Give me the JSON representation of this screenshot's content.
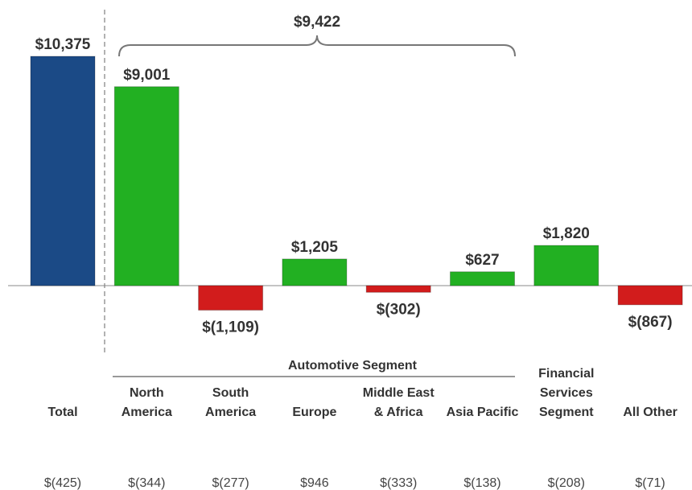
{
  "chart_data": {
    "type": "bar",
    "categories": [
      "Total",
      "North America",
      "South America",
      "Europe",
      "Middle East & Africa",
      "Asia Pacific",
      "Financial Services Segment",
      "All Other"
    ],
    "values": [
      10375,
      9001,
      -1109,
      1205,
      -302,
      627,
      1820,
      -867
    ],
    "value_labels": [
      "$10,375",
      "$9,001",
      "$(1,109)",
      "$1,205",
      "$(302)",
      "$627",
      "$1,820",
      "$(867)"
    ],
    "colors": [
      "#1b4a86",
      "#22b022",
      "#d21c1c",
      "#22b022",
      "#d21c1c",
      "#22b022",
      "#22b022",
      "#d21c1c"
    ],
    "bracket_label": "$9,422",
    "group_label": "Automotive Segment",
    "row_values": [
      "$(425)",
      "$(344)",
      "$(277)",
      "$946",
      "$(333)",
      "$(138)",
      "$(208)",
      "$(71)"
    ]
  }
}
